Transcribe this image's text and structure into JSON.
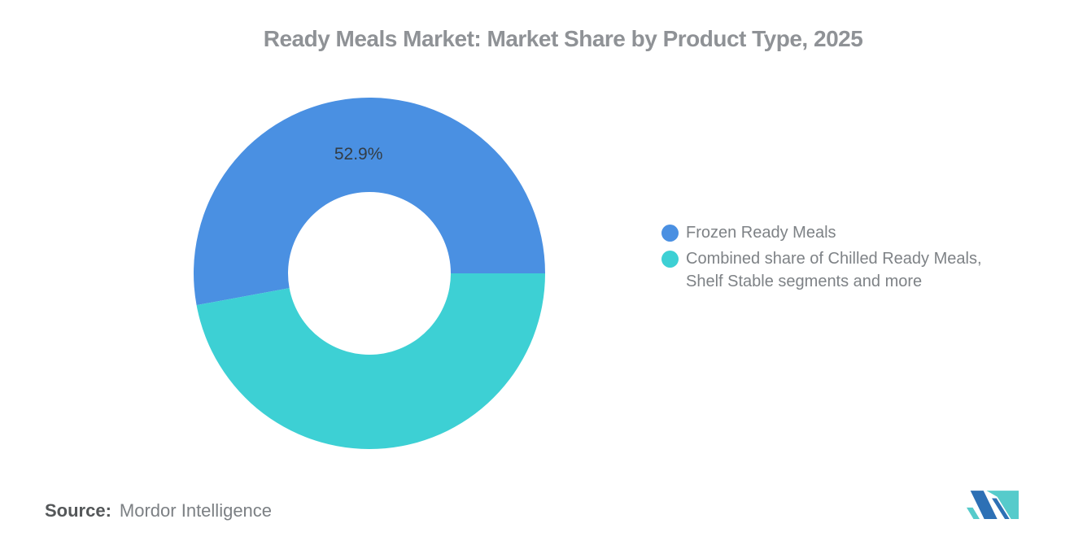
{
  "title": "Ready Meals Market: Market Share by Product Type, 2025",
  "source": {
    "label": "Source:",
    "value": "Mordor Intelligence"
  },
  "legend": {
    "position": "right",
    "items": [
      {
        "lines": [
          "Frozen Ready Meals"
        ],
        "color": "#4a90e2"
      },
      {
        "lines": [
          "Combined share of Chilled Ready Meals,",
          "Shelf Stable segments and more"
        ],
        "color": "#3dd0d4"
      }
    ]
  },
  "chart_data": {
    "type": "pie",
    "donut": true,
    "title": "Ready Meals Market: Market Share by Product Type, 2025",
    "start_angle_deg": 0,
    "direction": "counterclockwise",
    "inner_radius_ratio": 0.463,
    "slices": [
      {
        "name": "Frozen Ready Meals",
        "value": 52.9,
        "label": "52.9%",
        "color": "#4a90e2"
      },
      {
        "name": "Combined share of Chilled Ready Meals, Shelf Stable segments and more",
        "value": 47.1,
        "label": "",
        "color": "#3dd0d4"
      }
    ],
    "legend_position": "right",
    "data_label_color": "#333c44",
    "background": "#ffffff"
  },
  "brand": {
    "logo_blue": "#2d70b5",
    "logo_teal": "#56cbcb"
  }
}
